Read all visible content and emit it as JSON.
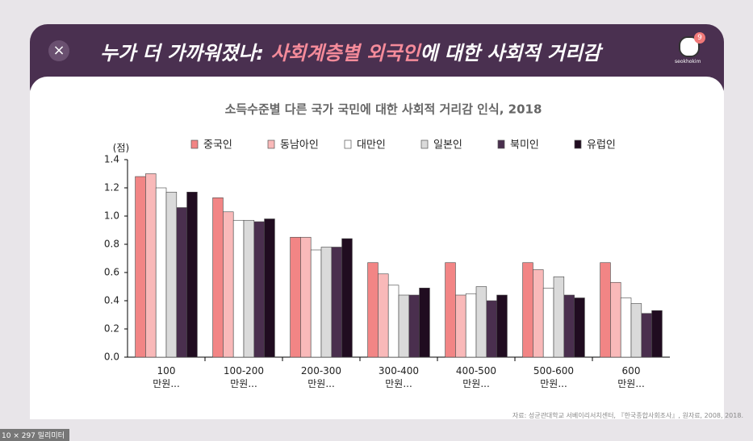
{
  "header": {
    "title_start": "누가 더 가까워졌나: ",
    "title_highlight": "사회계층별 외국인",
    "title_end": "에 대한 사회적 거리감",
    "badge": "9",
    "user": "seokhokim"
  },
  "source": "자료: 성균관대학교 서베이리서치센터, 『한국종합사회조사』, 원자료, 2008, 2018.",
  "footer_note": "10 × 297 밀리미터",
  "chart_data": {
    "type": "bar",
    "title": "소득수준별 다른 국가 국민에 대한 사회적 거리감 인식, 2018",
    "y_label": "(점)",
    "categories": [
      "100\n만원...",
      "100-200\n만원...",
      "200-300\n만원...",
      "300-400\n만원...",
      "400-500\n만원...",
      "500-600\n만원...",
      "600\n만원..."
    ],
    "series": [
      {
        "name": "중국인",
        "color": "#f28585",
        "values": [
          1.28,
          1.13,
          0.85,
          0.67,
          0.67,
          0.67,
          0.67
        ]
      },
      {
        "name": "동남아인",
        "color": "#f9b9b9",
        "values": [
          1.3,
          1.03,
          0.85,
          0.59,
          0.44,
          0.62,
          0.53
        ]
      },
      {
        "name": "대만인",
        "color": "#ffffff",
        "values": [
          1.2,
          0.97,
          0.76,
          0.51,
          0.45,
          0.49,
          0.42
        ]
      },
      {
        "name": "일본인",
        "color": "#dadada",
        "values": [
          1.17,
          0.97,
          0.78,
          0.44,
          0.5,
          0.57,
          0.38
        ]
      },
      {
        "name": "북미인",
        "color": "#4a2f4e",
        "values": [
          1.06,
          0.96,
          0.78,
          0.44,
          0.4,
          0.44,
          0.31
        ]
      },
      {
        "name": "유럽인",
        "color": "#200c20",
        "values": [
          1.17,
          0.98,
          0.84,
          0.49,
          0.44,
          0.42,
          0.33
        ]
      }
    ],
    "ylim": [
      0,
      1.4
    ],
    "yticks": [
      {
        "value": 0,
        "label": "0.0"
      },
      0.2,
      0.4,
      0.6,
      0.8,
      {
        "value": 1,
        "label": "1.0"
      },
      1.2,
      1.4
    ]
  }
}
